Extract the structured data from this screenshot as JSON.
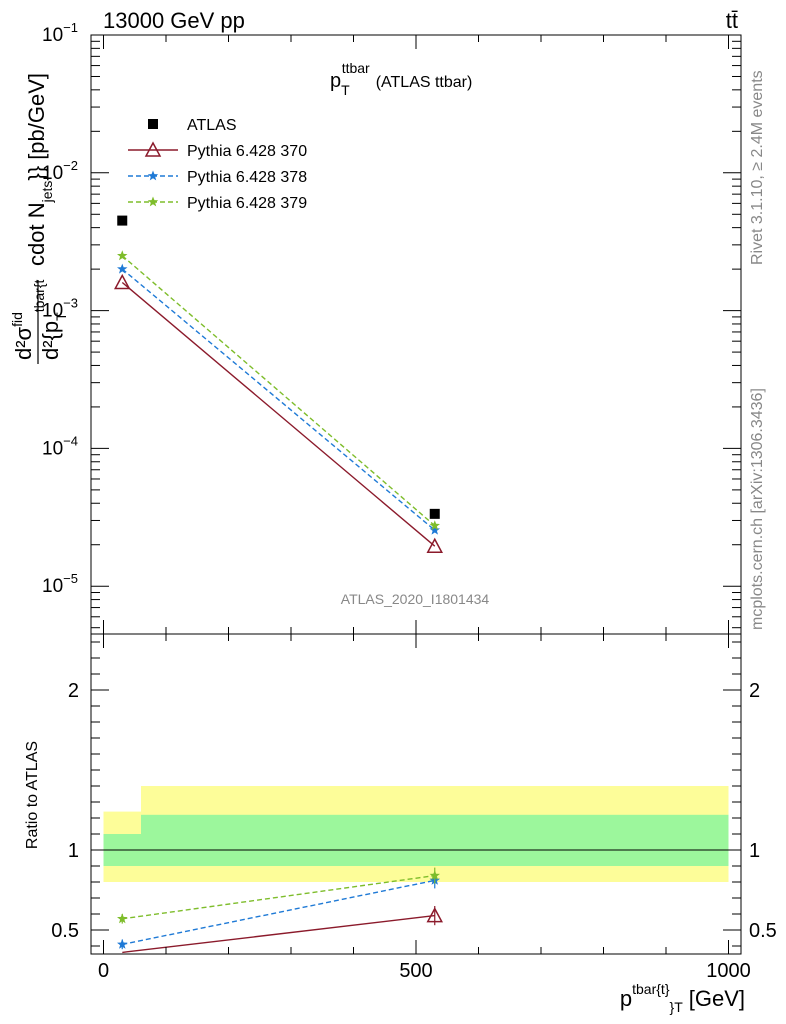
{
  "header": {
    "beam_label": "13000 GeV pp",
    "process_label": "tt̄",
    "side_label_upper": "Rivet 3.1.10, ≥ 2.4M events",
    "side_label_lower": "mcplots.cern.ch [arXiv:1306.3436]",
    "analysis_label": "ATLAS_2020_I1801434"
  },
  "chart_data": [
    {
      "type": "line",
      "panel": "main",
      "title": "p_T^ttbar (ATLAS ttbar)",
      "title_main": "p",
      "title_sup": "ttbar",
      "title_sub": "T",
      "title_rest": "(ATLAS ttbar)",
      "ylabel": "d²σ^fid / d²{p_T^tbar{t}} cdot N_jets}} [pb/GeV]",
      "ylabel_parts": {
        "num": "d²σ",
        "num_sup": "fid",
        "den": "d²{p",
        "den_sub": "T",
        "den_sup": "tbar{t",
        "rest": "cdot N",
        "rest_sub": "jets",
        "rest_tail": "}} [pb/GeV]"
      },
      "yscale": "log",
      "ylim": [
        4.5e-06,
        0.1
      ],
      "xlim": [
        -20,
        1020
      ],
      "ytick_labels": [
        {
          "base": "10",
          "exp": "−5",
          "value": 1e-05
        },
        {
          "base": "10",
          "exp": "−4",
          "value": 0.0001
        },
        {
          "base": "10",
          "exp": "−3",
          "value": 0.001
        },
        {
          "base": "10",
          "exp": "−2",
          "value": 0.01
        },
        {
          "base": "10",
          "exp": "−1",
          "value": 0.1
        }
      ],
      "legend_position": "top-left",
      "series": [
        {
          "name": "ATLAS",
          "color": "#000000",
          "marker": "square",
          "line": "none",
          "x": [
            30,
            530
          ],
          "y": [
            0.0045,
            3.35e-05
          ]
        },
        {
          "name": "Pythia 6.428 370",
          "color": "#8b1a2b",
          "marker": "open-triangle",
          "line": "solid",
          "x": [
            30,
            530
          ],
          "y": [
            0.0016,
            1.95e-05
          ]
        },
        {
          "name": "Pythia 6.428 378",
          "color": "#1f7ad6",
          "marker": "star",
          "line": "dashed",
          "x": [
            30,
            530
          ],
          "y": [
            0.002,
            2.55e-05
          ]
        },
        {
          "name": "Pythia 6.428 379",
          "color": "#7ebd2b",
          "marker": "star",
          "line": "dashed",
          "x": [
            30,
            530
          ],
          "y": [
            0.0025,
            2.75e-05
          ]
        }
      ]
    },
    {
      "type": "line",
      "panel": "ratio",
      "ylabel": "Ratio to ATLAS",
      "xlabel": "p_T^tbar{t}} [GeV]",
      "xlabel_parts": {
        "main": "p",
        "sup": "tbar{t}",
        "sub": "}",
        "sub2": "T",
        "rest": "[GeV]"
      },
      "xlim": [
        -20,
        1020
      ],
      "ylim": [
        0.35,
        2.35
      ],
      "xtick_labels": [
        {
          "label": "0",
          "value": 0
        },
        {
          "label": "500",
          "value": 500
        },
        {
          "label": "1000",
          "value": 1000
        }
      ],
      "ytick_labels": [
        {
          "label": "0.5",
          "value": 0.5
        },
        {
          "label": "1",
          "value": 1
        },
        {
          "label": "2",
          "value": 2
        }
      ],
      "bands": [
        {
          "x0": 0,
          "x1": 60,
          "inner": [
            0.9,
            1.1
          ],
          "outer": [
            0.8,
            1.24
          ]
        },
        {
          "x0": 60,
          "x1": 1000,
          "inner": [
            0.9,
            1.22
          ],
          "outer": [
            0.8,
            1.4
          ]
        }
      ],
      "band_colors": {
        "inner": "#9cf79c",
        "outer": "#fdfd99"
      },
      "series": [
        {
          "name": "Pythia 6.428 370",
          "color": "#8b1a2b",
          "marker": "open-triangle",
          "line": "solid",
          "x": [
            30,
            530
          ],
          "y": [
            0.36,
            0.59
          ],
          "err": [
            0.0,
            0.06
          ]
        },
        {
          "name": "Pythia 6.428 378",
          "color": "#1f7ad6",
          "marker": "star",
          "line": "dashed",
          "x": [
            30,
            530
          ],
          "y": [
            0.41,
            0.81
          ],
          "err": [
            0.03,
            0.05
          ]
        },
        {
          "name": "Pythia 6.428 379",
          "color": "#7ebd2b",
          "marker": "star",
          "line": "dashed",
          "x": [
            30,
            530
          ],
          "y": [
            0.57,
            0.84
          ],
          "err": [
            0.03,
            0.05
          ]
        }
      ]
    }
  ]
}
